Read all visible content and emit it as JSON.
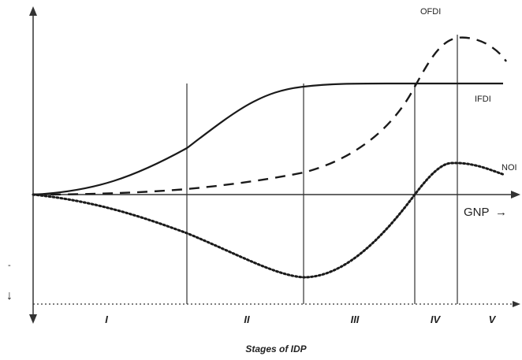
{
  "labels": {
    "ofdi": "OFDI",
    "ifdi": "IFDI",
    "noi": "NOI",
    "gnp": "GNP",
    "gnp_arrow": "→",
    "minus": "-",
    "down_arrow": "↓",
    "x_title": "Stages of IDP"
  },
  "stages": [
    "I",
    "II",
    "III",
    "IV",
    "V"
  ],
  "series": [
    {
      "name": "IFDI",
      "style": "solid"
    },
    {
      "name": "OFDI",
      "style": "dashed"
    },
    {
      "name": "NOI",
      "style": "dotted"
    }
  ],
  "colors": {
    "line": "#1a1a1a",
    "axis": "#333333"
  }
}
